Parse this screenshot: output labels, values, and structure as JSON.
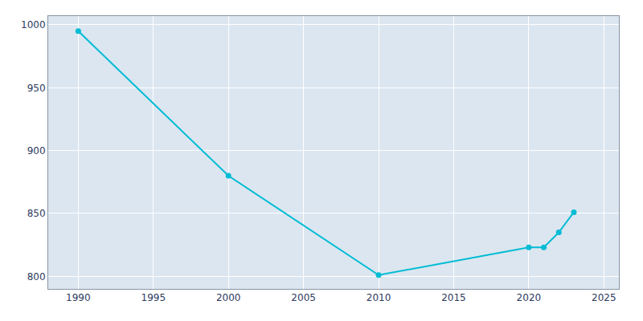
{
  "chart_data": {
    "type": "line",
    "x": [
      1990,
      2000,
      2010,
      2020,
      2021,
      2022,
      2023
    ],
    "values": [
      995,
      880,
      801,
      823,
      823,
      835,
      851
    ],
    "color": "#00BCD4",
    "marker": "circle",
    "xlim": [
      1988,
      2026
    ],
    "ylim": [
      790,
      1007
    ],
    "xticks": [
      1990,
      1995,
      2000,
      2005,
      2010,
      2015,
      2020,
      2025
    ],
    "yticks": [
      800,
      850,
      900,
      950,
      1000
    ],
    "grid": true
  }
}
